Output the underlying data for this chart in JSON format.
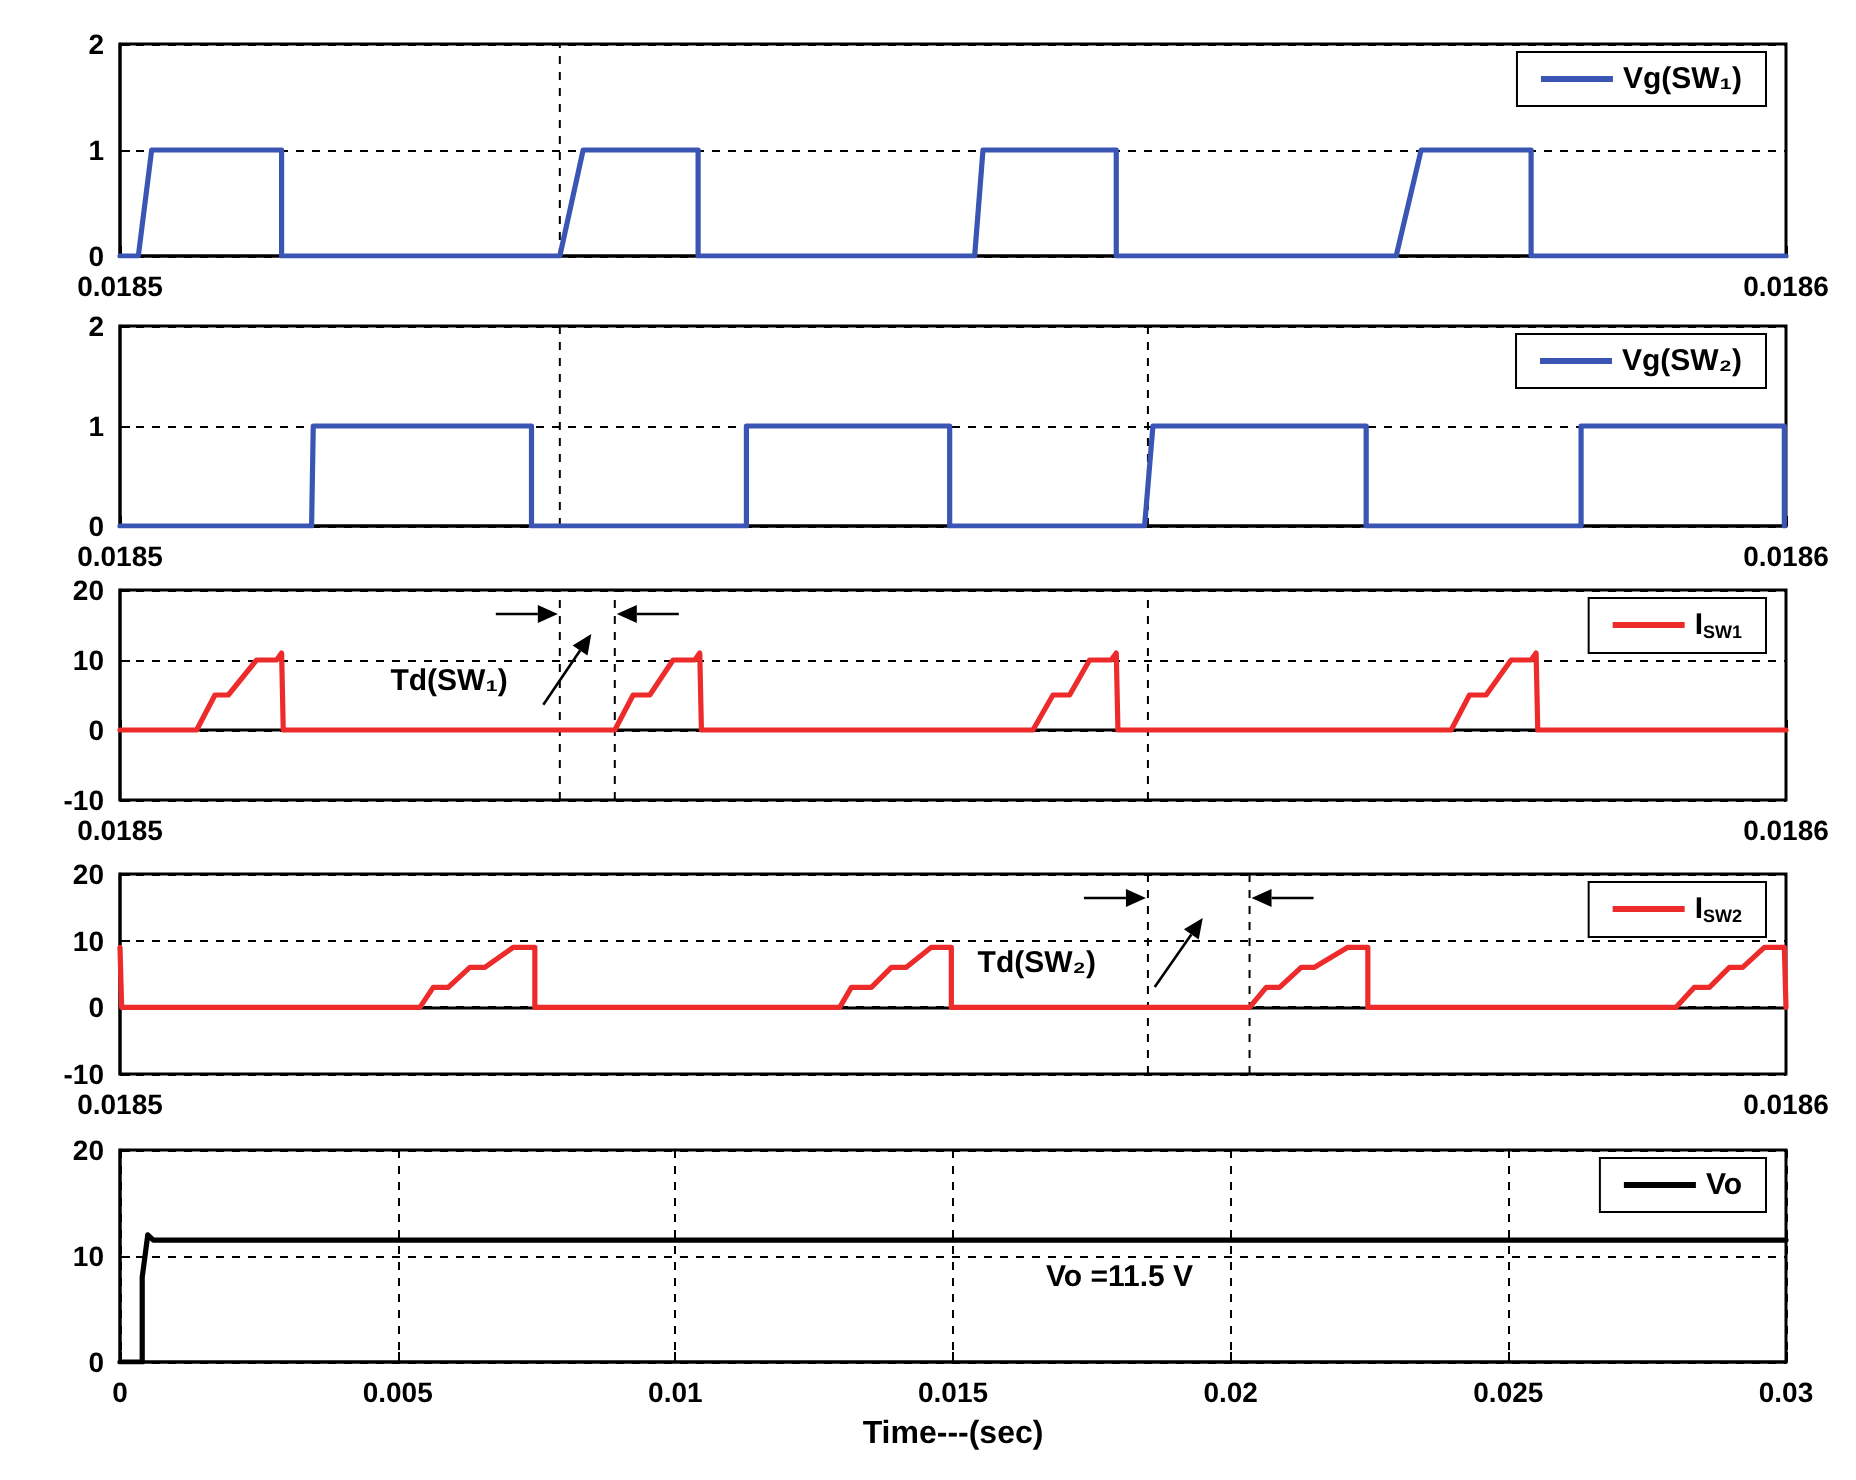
{
  "chart_data": [
    {
      "type": "line",
      "x": [
        0.0185,
        0.0185011,
        0.0185019,
        0.0185097,
        0.0185097,
        0.0185264,
        0.0185278,
        0.0185347,
        0.0185347,
        0.0185513,
        0.0185518,
        0.0185598,
        0.0185598,
        0.0185766,
        0.0185781,
        0.0185847,
        0.0185847,
        0.0186
      ],
      "series": [
        {
          "name": "Vg(SW₁)",
          "color": "#3a55b4",
          "values": [
            0,
            0,
            1,
            1,
            0,
            0,
            1,
            1,
            0,
            0,
            1,
            1,
            0,
            0,
            1,
            1,
            0,
            0
          ]
        }
      ],
      "xlim": [
        0.0185,
        0.0186
      ],
      "xticks": [
        0.0185,
        0.0186
      ],
      "ylim": [
        0,
        2
      ],
      "yticks": [
        0,
        1,
        2
      ],
      "grid": "y",
      "legend": "top right",
      "marker": "none",
      "line_style": "solid",
      "ref_lines": [
        {
          "axis": "x",
          "value": 0.0185264,
          "label": null
        }
      ]
    },
    {
      "type": "line",
      "x": [
        0.0185,
        0.0185115,
        0.0185116,
        0.0185247,
        0.0185247,
        0.0185376,
        0.0185376,
        0.0185498,
        0.0185498,
        0.0185615,
        0.018562,
        0.0185748,
        0.0185748,
        0.0185877,
        0.0185877,
        0.0185999,
        0.0185999
      ],
      "series": [
        {
          "name": "Vg(SW₂)",
          "color": "#3a55b4",
          "values": [
            0,
            0,
            1,
            1,
            0,
            0,
            1,
            1,
            0,
            0,
            1,
            1,
            0,
            0,
            1,
            1,
            0
          ]
        }
      ],
      "xlim": [
        0.0185,
        0.0186
      ],
      "xticks": [
        0.0185,
        0.0186
      ],
      "ylim": [
        0,
        2
      ],
      "yticks": [
        0,
        1,
        2
      ],
      "grid": "y",
      "legend": "top right",
      "marker": "none",
      "line_style": "solid",
      "ref_lines": [
        {
          "axis": "x",
          "value": 0.0185264,
          "label": null
        },
        {
          "axis": "x",
          "value": 0.0185617,
          "label": null
        }
      ]
    },
    {
      "type": "line",
      "x": [
        0.0185,
        0.0185046,
        0.0185057,
        0.0185065,
        0.0185082,
        0.0185094,
        0.0185097,
        0.0185098,
        0.0185297,
        0.0185308,
        0.0185318,
        0.0185332,
        0.0185345,
        0.0185348,
        0.0185349,
        0.0185548,
        0.018556,
        0.018557,
        0.0185582,
        0.0185595,
        0.0185598,
        0.0185599,
        0.0185799,
        0.018581,
        0.018582,
        0.0185835,
        0.0185847,
        0.018585,
        0.0185851,
        0.0186
      ],
      "series": [
        {
          "name": "I$_{SW1}$",
          "color": "#ee2b2b",
          "values": [
            0,
            0,
            5,
            5,
            10,
            10,
            11,
            0,
            0,
            5,
            5,
            10,
            10,
            11,
            0,
            0,
            5,
            5,
            10,
            10,
            11,
            0,
            0,
            5,
            5,
            10,
            10,
            11,
            0,
            0
          ]
        }
      ],
      "xlim": [
        0.0185,
        0.0186
      ],
      "xticks": [
        0.0185,
        0.0186
      ],
      "ylim": [
        -10,
        20
      ],
      "yticks": [
        -10,
        0,
        10,
        20
      ],
      "grid": "y",
      "legend": "top right",
      "marker": "none",
      "line_style": "solid",
      "ref_lines": [
        {
          "axis": "x",
          "value": 0.0185264,
          "label": null
        },
        {
          "axis": "x",
          "value": 0.0185297,
          "label": null
        },
        {
          "axis": "x",
          "value": 0.0185617,
          "label": null
        }
      ],
      "annotations": [
        "Td(SW₁)"
      ]
    },
    {
      "type": "line",
      "x": [
        0.0185,
        0.0185001,
        0.018518,
        0.0185188,
        0.0185197,
        0.018521,
        0.0185219,
        0.0185236,
        0.0185249,
        0.0185249,
        0.0185432,
        0.0185439,
        0.0185451,
        0.0185463,
        0.0185472,
        0.0185487,
        0.0185499,
        0.0185499,
        0.0185678,
        0.0185688,
        0.0185696,
        0.0185709,
        0.0185717,
        0.0185737,
        0.0185749,
        0.0185749,
        0.0185934,
        0.0185945,
        0.0185954,
        0.0185966,
        0.0185974,
        0.0185987,
        0.0185999,
        0.0186
      ],
      "series": [
        {
          "name": "I$_{SW2}$",
          "color": "#ee2b2b",
          "values": [
            9,
            0,
            0,
            3,
            3,
            6,
            6,
            9,
            9,
            0,
            0,
            3,
            3,
            6,
            6,
            9,
            9,
            0,
            0,
            3,
            3,
            6,
            6,
            9,
            9,
            0,
            0,
            3,
            3,
            6,
            6,
            9,
            9,
            0
          ]
        }
      ],
      "xlim": [
        0.0185,
        0.0186
      ],
      "xticks": [
        0.0185,
        0.0186
      ],
      "ylim": [
        -10,
        20
      ],
      "yticks": [
        -10,
        0,
        10,
        20
      ],
      "grid": "y",
      "legend": "top right",
      "marker": "none",
      "line_style": "solid",
      "ref_lines": [
        {
          "axis": "x",
          "value": 0.0185617,
          "label": null
        },
        {
          "axis": "x",
          "value": 0.0185678,
          "label": null
        }
      ],
      "annotations": [
        "Td(SW₂)"
      ]
    },
    {
      "type": "line",
      "x": [
        0,
        0.0004,
        0.0004,
        0.0005,
        0.0006,
        0.03
      ],
      "series": [
        {
          "name": "Vo",
          "color": "#000000",
          "values": [
            0,
            0,
            8,
            12,
            11.5,
            11.5
          ]
        }
      ],
      "xlim": [
        0,
        0.03
      ],
      "xticks": [
        0,
        0.005,
        0.01,
        0.015,
        0.02,
        0.025,
        0.03
      ],
      "ylim": [
        0,
        20
      ],
      "yticks": [
        0,
        10,
        20
      ],
      "grid": true,
      "legend": "top right",
      "marker": "none",
      "line_style": "solid",
      "xlabel": "Time---(sec)",
      "annotations": [
        "Vo =11.5 V"
      ]
    }
  ]
}
